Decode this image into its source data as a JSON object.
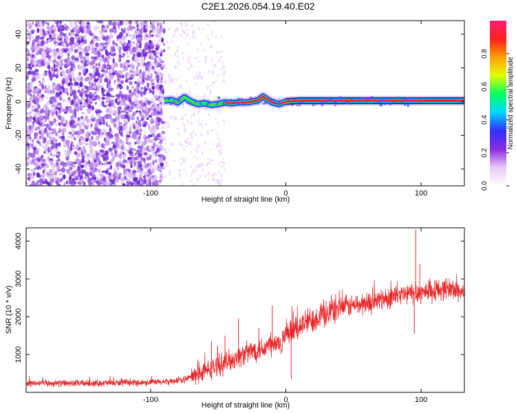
{
  "title": "C2E1.2026.054.19.40.E02",
  "chart_data": [
    {
      "type": "heatmap",
      "name": "spectrogram",
      "xlabel": "Height of straight line (km)",
      "ylabel": "Frequency (Hz)",
      "xlim": [
        -192,
        132
      ],
      "ylim": [
        -50,
        48
      ],
      "xticks": [
        -100,
        0,
        100
      ],
      "xtick_labels": [
        "-100",
        "0",
        "100"
      ],
      "yticks": [
        -40,
        -20,
        0,
        20,
        40
      ],
      "ytick_labels": [
        "-40",
        "-20",
        "0",
        "20",
        "40"
      ],
      "noise_region_x": [
        -192,
        -90
      ],
      "signal_start_x": -90,
      "signal_track": [
        [
          -90,
          0.5
        ],
        [
          -85,
          1.0
        ],
        [
          -80,
          -0.5
        ],
        [
          -75,
          2.5
        ],
        [
          -70,
          0.0
        ],
        [
          -65,
          -1.5
        ],
        [
          -60,
          -1.0
        ],
        [
          -55,
          -2.0
        ],
        [
          -50,
          -1.5
        ],
        [
          -45,
          -0.5
        ],
        [
          -40,
          -1.0
        ],
        [
          -35,
          -0.5
        ],
        [
          -30,
          -0.5
        ],
        [
          -25,
          0.0
        ],
        [
          -20,
          1.0
        ],
        [
          -17,
          3.0
        ],
        [
          -14,
          1.5
        ],
        [
          -10,
          -0.5
        ],
        [
          -5,
          -1.5
        ],
        [
          0,
          0.0
        ],
        [
          10,
          0.5
        ],
        [
          50,
          0.5
        ],
        [
          100,
          0.5
        ],
        [
          132,
          0.5
        ]
      ],
      "colorbar": {
        "label": "Normalized spectral amplitude",
        "range": [
          0,
          1
        ],
        "ticks": [
          0.0,
          0.2,
          0.4,
          0.6,
          0.8
        ],
        "tick_labels": [
          "0.0",
          "0.2",
          "0.4",
          "0.6",
          "0.8"
        ],
        "stops": [
          "#ffffff",
          "#e9c9f5",
          "#8a2be2",
          "#3030ff",
          "#00d8ff",
          "#00ff60",
          "#e0ff00",
          "#ffa000",
          "#ff2020",
          "#ff2070"
        ]
      }
    },
    {
      "type": "line",
      "name": "snr",
      "xlabel": "Height of straight line (km)",
      "ylabel": "SNR (10 * v/v)",
      "xlim": [
        -192,
        132
      ],
      "ylim": [
        0,
        4350
      ],
      "xticks": [
        -100,
        0,
        100
      ],
      "xtick_labels": [
        "-100",
        "0",
        "100"
      ],
      "yticks": [
        1000,
        2000,
        3000,
        4000
      ],
      "ytick_labels": [
        "1000",
        "2000",
        "3000",
        "4000"
      ],
      "color": "#e8282a",
      "baseline": {
        "x": [
          -192,
          -150,
          -120,
          -90,
          -75,
          -65,
          -55,
          -45,
          -35,
          -25,
          -15,
          -5,
          0,
          10,
          20,
          30,
          40,
          50,
          60,
          70,
          80,
          90,
          100,
          110,
          120,
          132
        ],
        "y": [
          240,
          240,
          250,
          270,
          340,
          480,
          620,
          780,
          950,
          1100,
          1200,
          1280,
          1450,
          1750,
          1950,
          2100,
          2250,
          2300,
          2350,
          2450,
          2550,
          2600,
          2650,
          2700,
          2750,
          2650
        ]
      },
      "spikes": [
        {
          "x": 96,
          "y": 4300
        },
        {
          "x": 99,
          "y": 3400
        },
        {
          "x": 95,
          "y": 1550
        },
        {
          "x": -10,
          "y": 2300
        },
        {
          "x": -35,
          "y": 1950
        },
        {
          "x": -55,
          "y": 1350
        },
        {
          "x": -45,
          "y": 1500
        },
        {
          "x": -20,
          "y": 1700
        },
        {
          "x": 4,
          "y": 350
        }
      ]
    }
  ]
}
